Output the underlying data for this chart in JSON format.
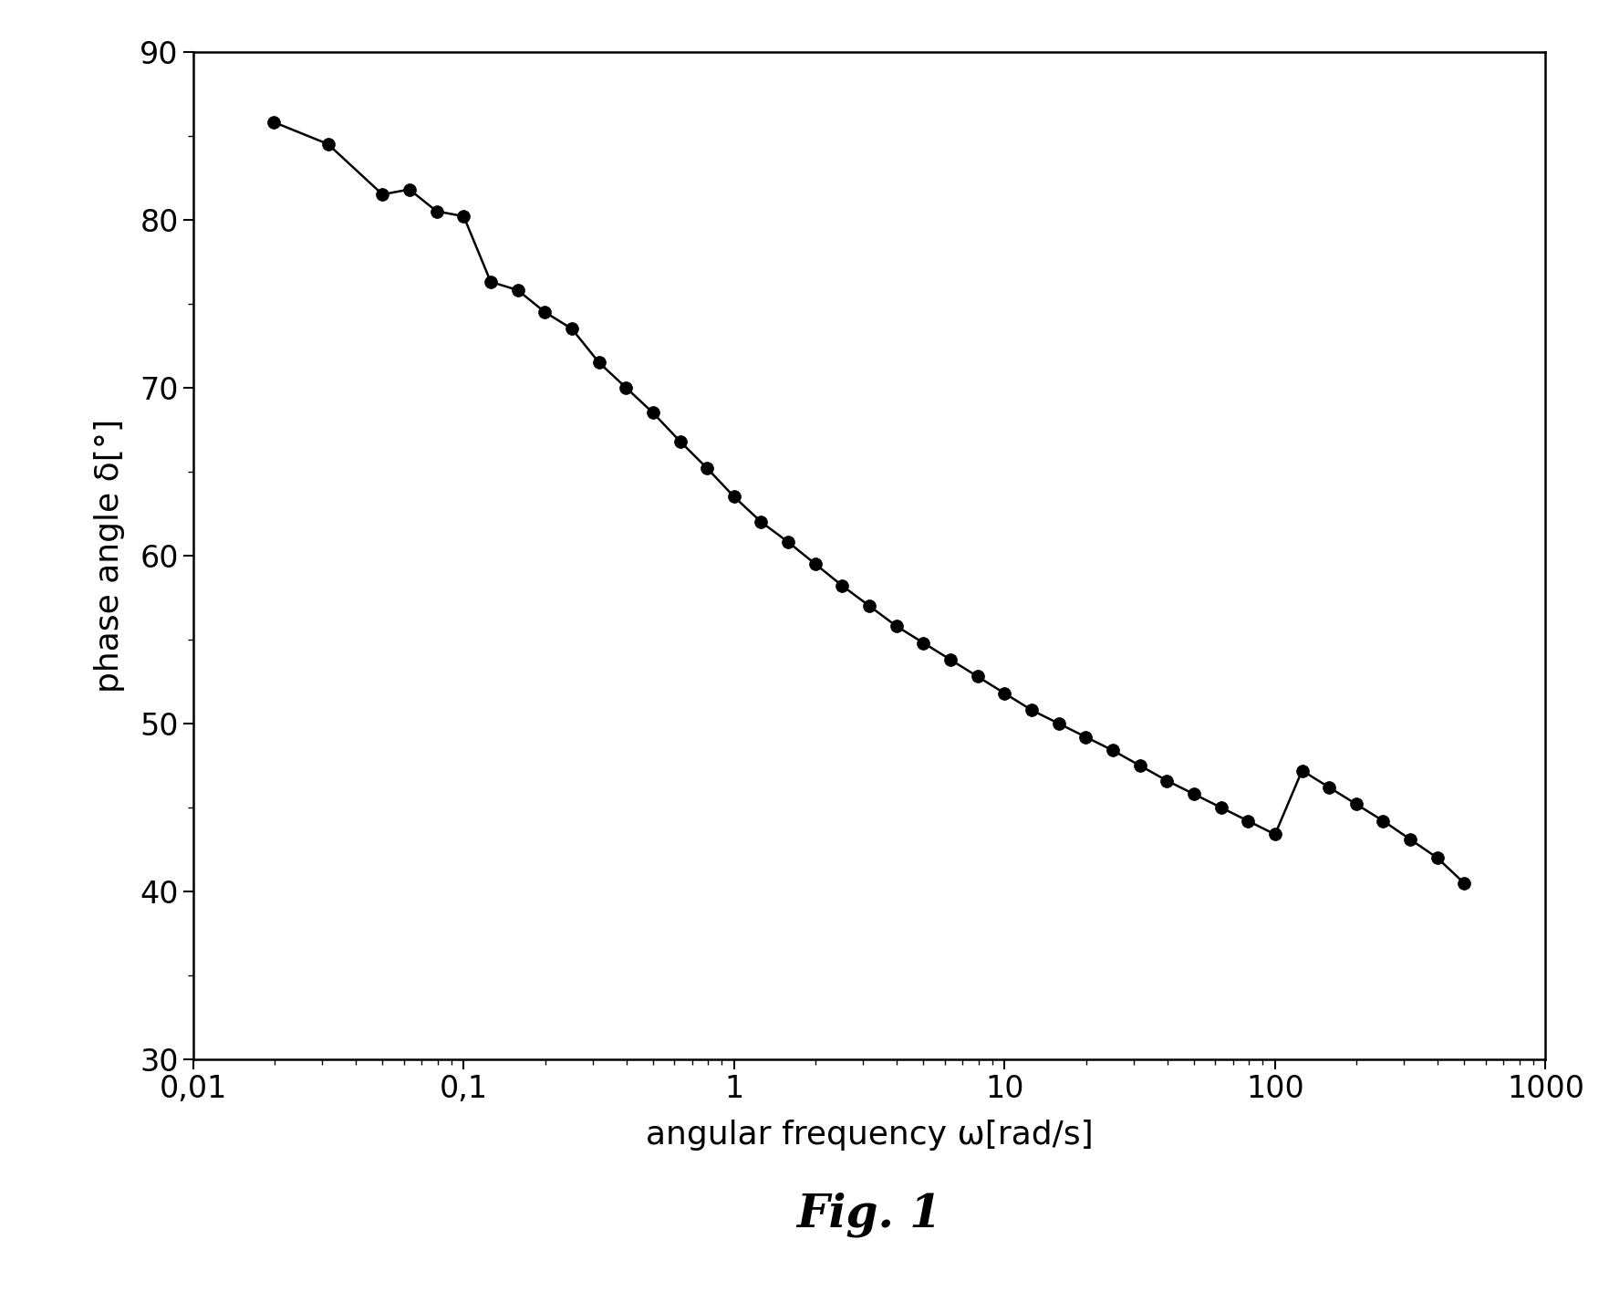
{
  "x_data": [
    0.0199,
    0.0315,
    0.0501,
    0.063,
    0.0794,
    0.1,
    0.1259,
    0.1585,
    0.1995,
    0.2512,
    0.3162,
    0.3981,
    0.5012,
    0.631,
    0.7943,
    1.0,
    1.2589,
    1.5849,
    1.9953,
    2.5119,
    3.1623,
    3.9811,
    5.0119,
    6.3096,
    7.9433,
    10.0,
    12.589,
    15.849,
    19.953,
    25.119,
    31.623,
    39.811,
    50.119,
    63.096,
    79.433,
    100.0,
    125.89,
    158.49,
    199.53,
    251.19,
    316.23,
    398.11,
    500.0
  ],
  "y_data": [
    85.8,
    84.5,
    81.5,
    81.8,
    80.5,
    80.2,
    76.3,
    75.8,
    74.5,
    73.5,
    71.5,
    70.0,
    68.5,
    66.8,
    65.2,
    63.5,
    62.0,
    60.8,
    59.5,
    58.2,
    57.0,
    55.8,
    54.8,
    53.8,
    52.8,
    51.8,
    50.8,
    50.0,
    49.2,
    48.4,
    47.5,
    46.6,
    45.8,
    45.0,
    44.2,
    43.4,
    47.2,
    46.2,
    45.2,
    44.2,
    43.1,
    42.0,
    40.5
  ],
  "xlabel": "angular frequency ω[rad/s]",
  "ylabel": "phase angle δ[°]",
  "fig_label": "Fig. 1",
  "xlim": [
    0.01,
    1000
  ],
  "ylim": [
    30,
    90
  ],
  "yticks": [
    30,
    40,
    50,
    60,
    70,
    80,
    90
  ],
  "xtick_labels": [
    "0,01",
    "0,1",
    "1",
    "10",
    "100",
    "1000"
  ],
  "xtick_positions": [
    0.01,
    0.1,
    1,
    10,
    100,
    1000
  ],
  "marker_size": 10,
  "line_color": "#000000",
  "bg_color": "#ffffff",
  "xlabel_fontsize": 26,
  "ylabel_fontsize": 26,
  "tick_fontsize": 24,
  "fig_label_fontsize": 36
}
